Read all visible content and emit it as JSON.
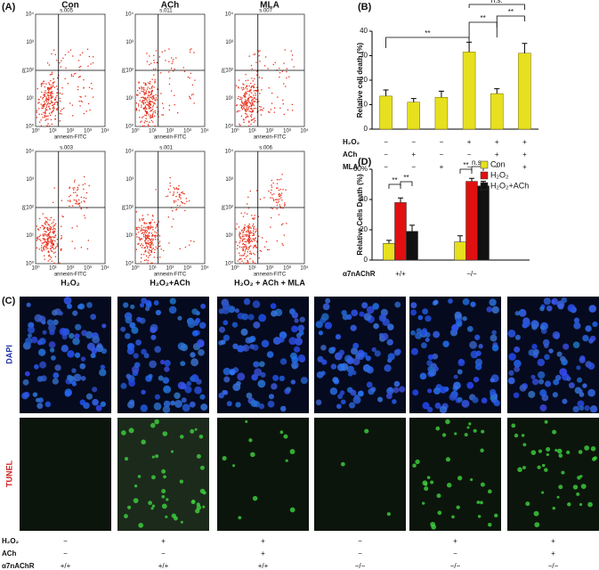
{
  "panel_labels": [
    "(A)",
    "(B)",
    "(C)",
    "(D)"
  ],
  "flow": {
    "top_titles": [
      "Con",
      "ACh",
      "MLA"
    ],
    "bottom_titles": [
      "H₂O₂",
      "H₂O₂+ACh",
      "H₂O₂ + ACh + MLA"
    ],
    "quadrant_values": [
      "s.005",
      "s.011",
      "s.007",
      "s.003",
      "s.001",
      "s.006"
    ],
    "x_label": "annexin-FITC",
    "y_label": "PI",
    "tick_labels": [
      "10⁰",
      "10¹",
      "10²",
      "10³",
      "10⁴"
    ]
  },
  "chart_data": [
    {
      "type": "bar",
      "categories": [
        null,
        null,
        null,
        null,
        null,
        null
      ],
      "values": [
        13.5,
        11,
        13,
        31.5,
        14.5,
        31
      ],
      "errors": [
        2.5,
        1.5,
        2.5,
        4,
        2,
        4
      ],
      "color": "#e6e01e",
      "ylim": [
        0,
        40
      ],
      "yticks": [
        0,
        10,
        20,
        30,
        40
      ],
      "y_label": "Relative cell death (%)",
      "annotations": [
        "**",
        "**",
        "**",
        "n.s."
      ],
      "treatments": [
        {
          "name": "H₂O₂",
          "values": [
            "−",
            "−",
            "−",
            "+",
            "+",
            "+"
          ]
        },
        {
          "name": "ACh",
          "values": [
            "−",
            "+",
            "−",
            "−",
            "+",
            "+"
          ]
        },
        {
          "name": "MLA",
          "values": [
            "−",
            "−",
            "+",
            "−",
            "−",
            "+"
          ]
        }
      ]
    },
    {
      "type": "grouped_bar",
      "categories": [
        "+/+",
        "−/−"
      ],
      "series": [
        {
          "name": "Con",
          "color": "#e6e01e",
          "values": [
            11,
            12
          ],
          "errors": [
            2,
            4
          ]
        },
        {
          "name": "H₂O₂",
          "color": "#e01010",
          "values": [
            38,
            52
          ],
          "errors": [
            3,
            2
          ]
        },
        {
          "name": "H₂O₂+ACh",
          "color": "#111111",
          "values": [
            19,
            49
          ],
          "errors": [
            4,
            3
          ]
        }
      ],
      "ylim": [
        0,
        60
      ],
      "yticks": [
        0,
        20,
        40,
        {
          "value": 60,
          "label": "60%"
        }
      ],
      "y_label": "Relative Cells Death (%)",
      "x_label": "α7nAChR",
      "legend": "upper right",
      "annotations": [
        "**",
        "**",
        "**",
        "n.s."
      ]
    }
  ],
  "images": {
    "row_labels": [
      "DAPI",
      "TUNEL"
    ],
    "conditions": [
      {
        "name": "H₂O₂",
        "values": [
          "−",
          "+",
          "+",
          "−",
          "+",
          "+"
        ]
      },
      {
        "name": "ACh",
        "values": [
          "−",
          "−",
          "+",
          "−",
          "−",
          "+"
        ]
      },
      {
        "name": "α7nAChR",
        "values": [
          "+/+",
          "+/+",
          "+/+",
          "−/−",
          "−/−",
          "−/−"
        ]
      }
    ]
  }
}
